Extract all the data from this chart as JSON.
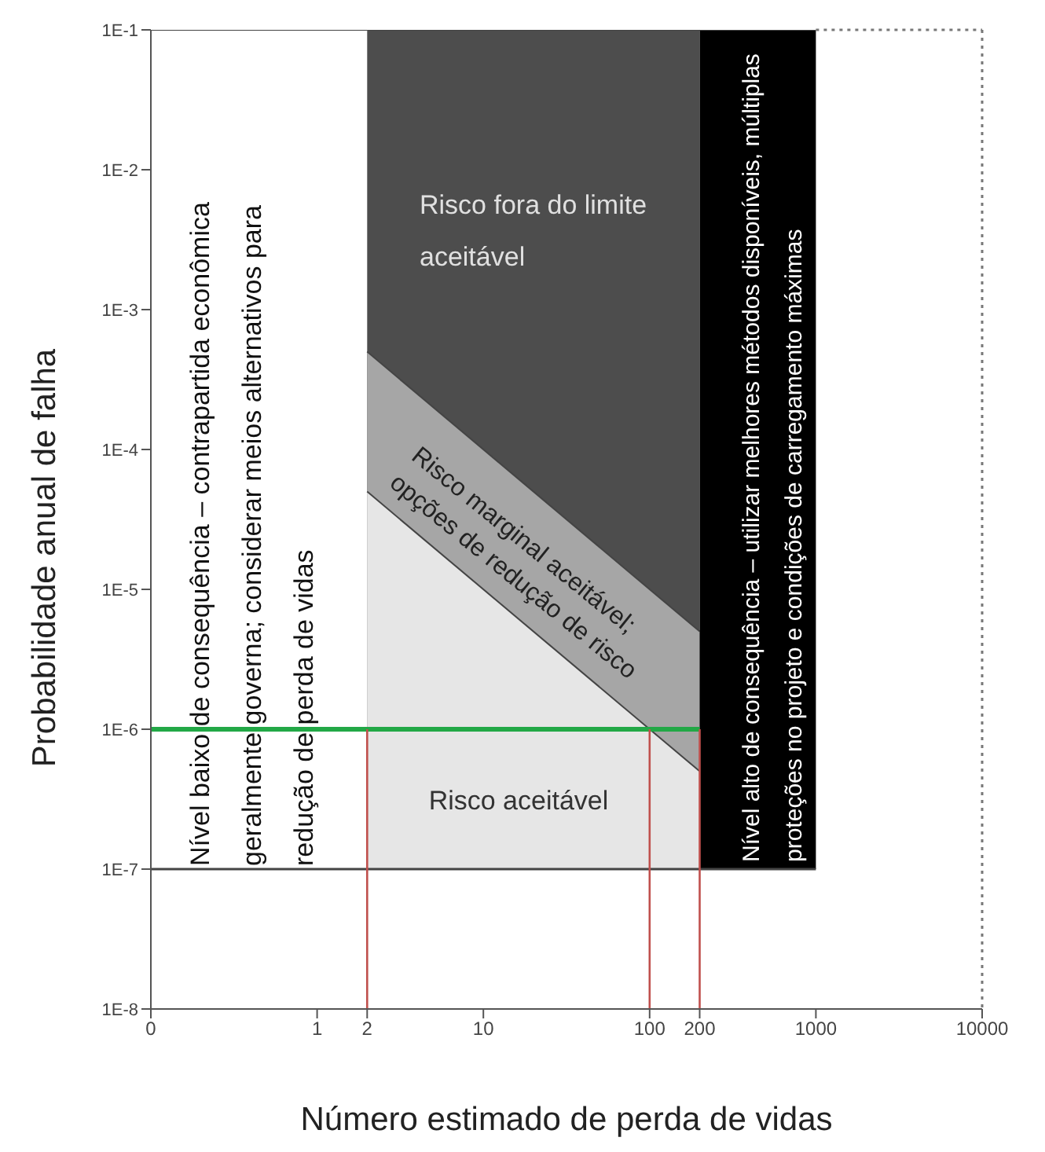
{
  "chart_data": {
    "type": "area",
    "xlabel": "Número estimado de perda de vidas",
    "ylabel": "Probabilidade anual de falha",
    "log": "xy",
    "marker": "none",
    "xlim": [
      0.1,
      10000
    ],
    "xticks": [
      {
        "value": 0.1,
        "label": "0"
      },
      1,
      2,
      10,
      100,
      200,
      1000,
      10000
    ],
    "ylim": [
      1e-08,
      0.1
    ],
    "yticks": [
      {
        "value": 1e-08,
        "label": "1E-8"
      },
      {
        "value": 1e-07,
        "label": "1E-7"
      },
      {
        "value": 1e-06,
        "label": "1E-6"
      },
      {
        "value": 1e-05,
        "label": "1E-5"
      },
      {
        "value": 0.0001,
        "label": "1E-4"
      },
      {
        "value": 0.001,
        "label": "1E-3"
      },
      {
        "value": 0.01,
        "label": "1E-2"
      },
      {
        "value": 0.1,
        "label": "1E-1"
      }
    ],
    "series": [
      {
        "color": "#ffffff",
        "x": [
          0.1,
          2
        ],
        "values": [
          0.1,
          0.1
        ]
      },
      {
        "color": "#4d4d4d",
        "x": [
          2,
          200
        ],
        "values": [
          0.1,
          0.1
        ]
      },
      {
        "color": "#a6a6a6",
        "x": [
          2,
          200
        ],
        "values": [
          0.0005,
          5e-06
        ]
      },
      {
        "color": "#e6e6e6",
        "x": [
          2,
          200
        ],
        "values": [
          5e-05,
          5e-07
        ]
      },
      {
        "color": "#000000",
        "x": [
          200,
          1000
        ],
        "values": [
          0.1,
          0.1
        ]
      },
      {
        "type": "line",
        "color": "#444444",
        "x": [
          0.1,
          1000
        ],
        "values": [
          1e-07,
          1e-07
        ]
      },
      {
        "type": "line",
        "color": "#22a846",
        "x": [
          0.1,
          200
        ],
        "values": [
          1e-06,
          1e-06
        ]
      },
      {
        "type": "line",
        "color": "#c0504d",
        "x": [
          2,
          2
        ],
        "values": [
          1e-08,
          1e-06
        ]
      },
      {
        "type": "line",
        "color": "#c0504d",
        "x": [
          100,
          100
        ],
        "values": [
          1e-08,
          1e-06
        ]
      },
      {
        "type": "line",
        "color": "#c0504d",
        "x": [
          200,
          200
        ],
        "values": [
          1e-08,
          1e-06
        ]
      }
    ],
    "annotations": [
      "Nível baixo de consequência – contrapartida econômica geralmente governa; considerar meios alternativos para redução de perda de vidas",
      "Risco fora do limite aceitável",
      "Risco marginal aceitável; opções de redução de risco",
      "Risco aceitável",
      "Nível alto de consequência – utilizar melhores métodos disponíveis, múltiplas proteções no projeto e condições de carregamento máximas"
    ]
  }
}
